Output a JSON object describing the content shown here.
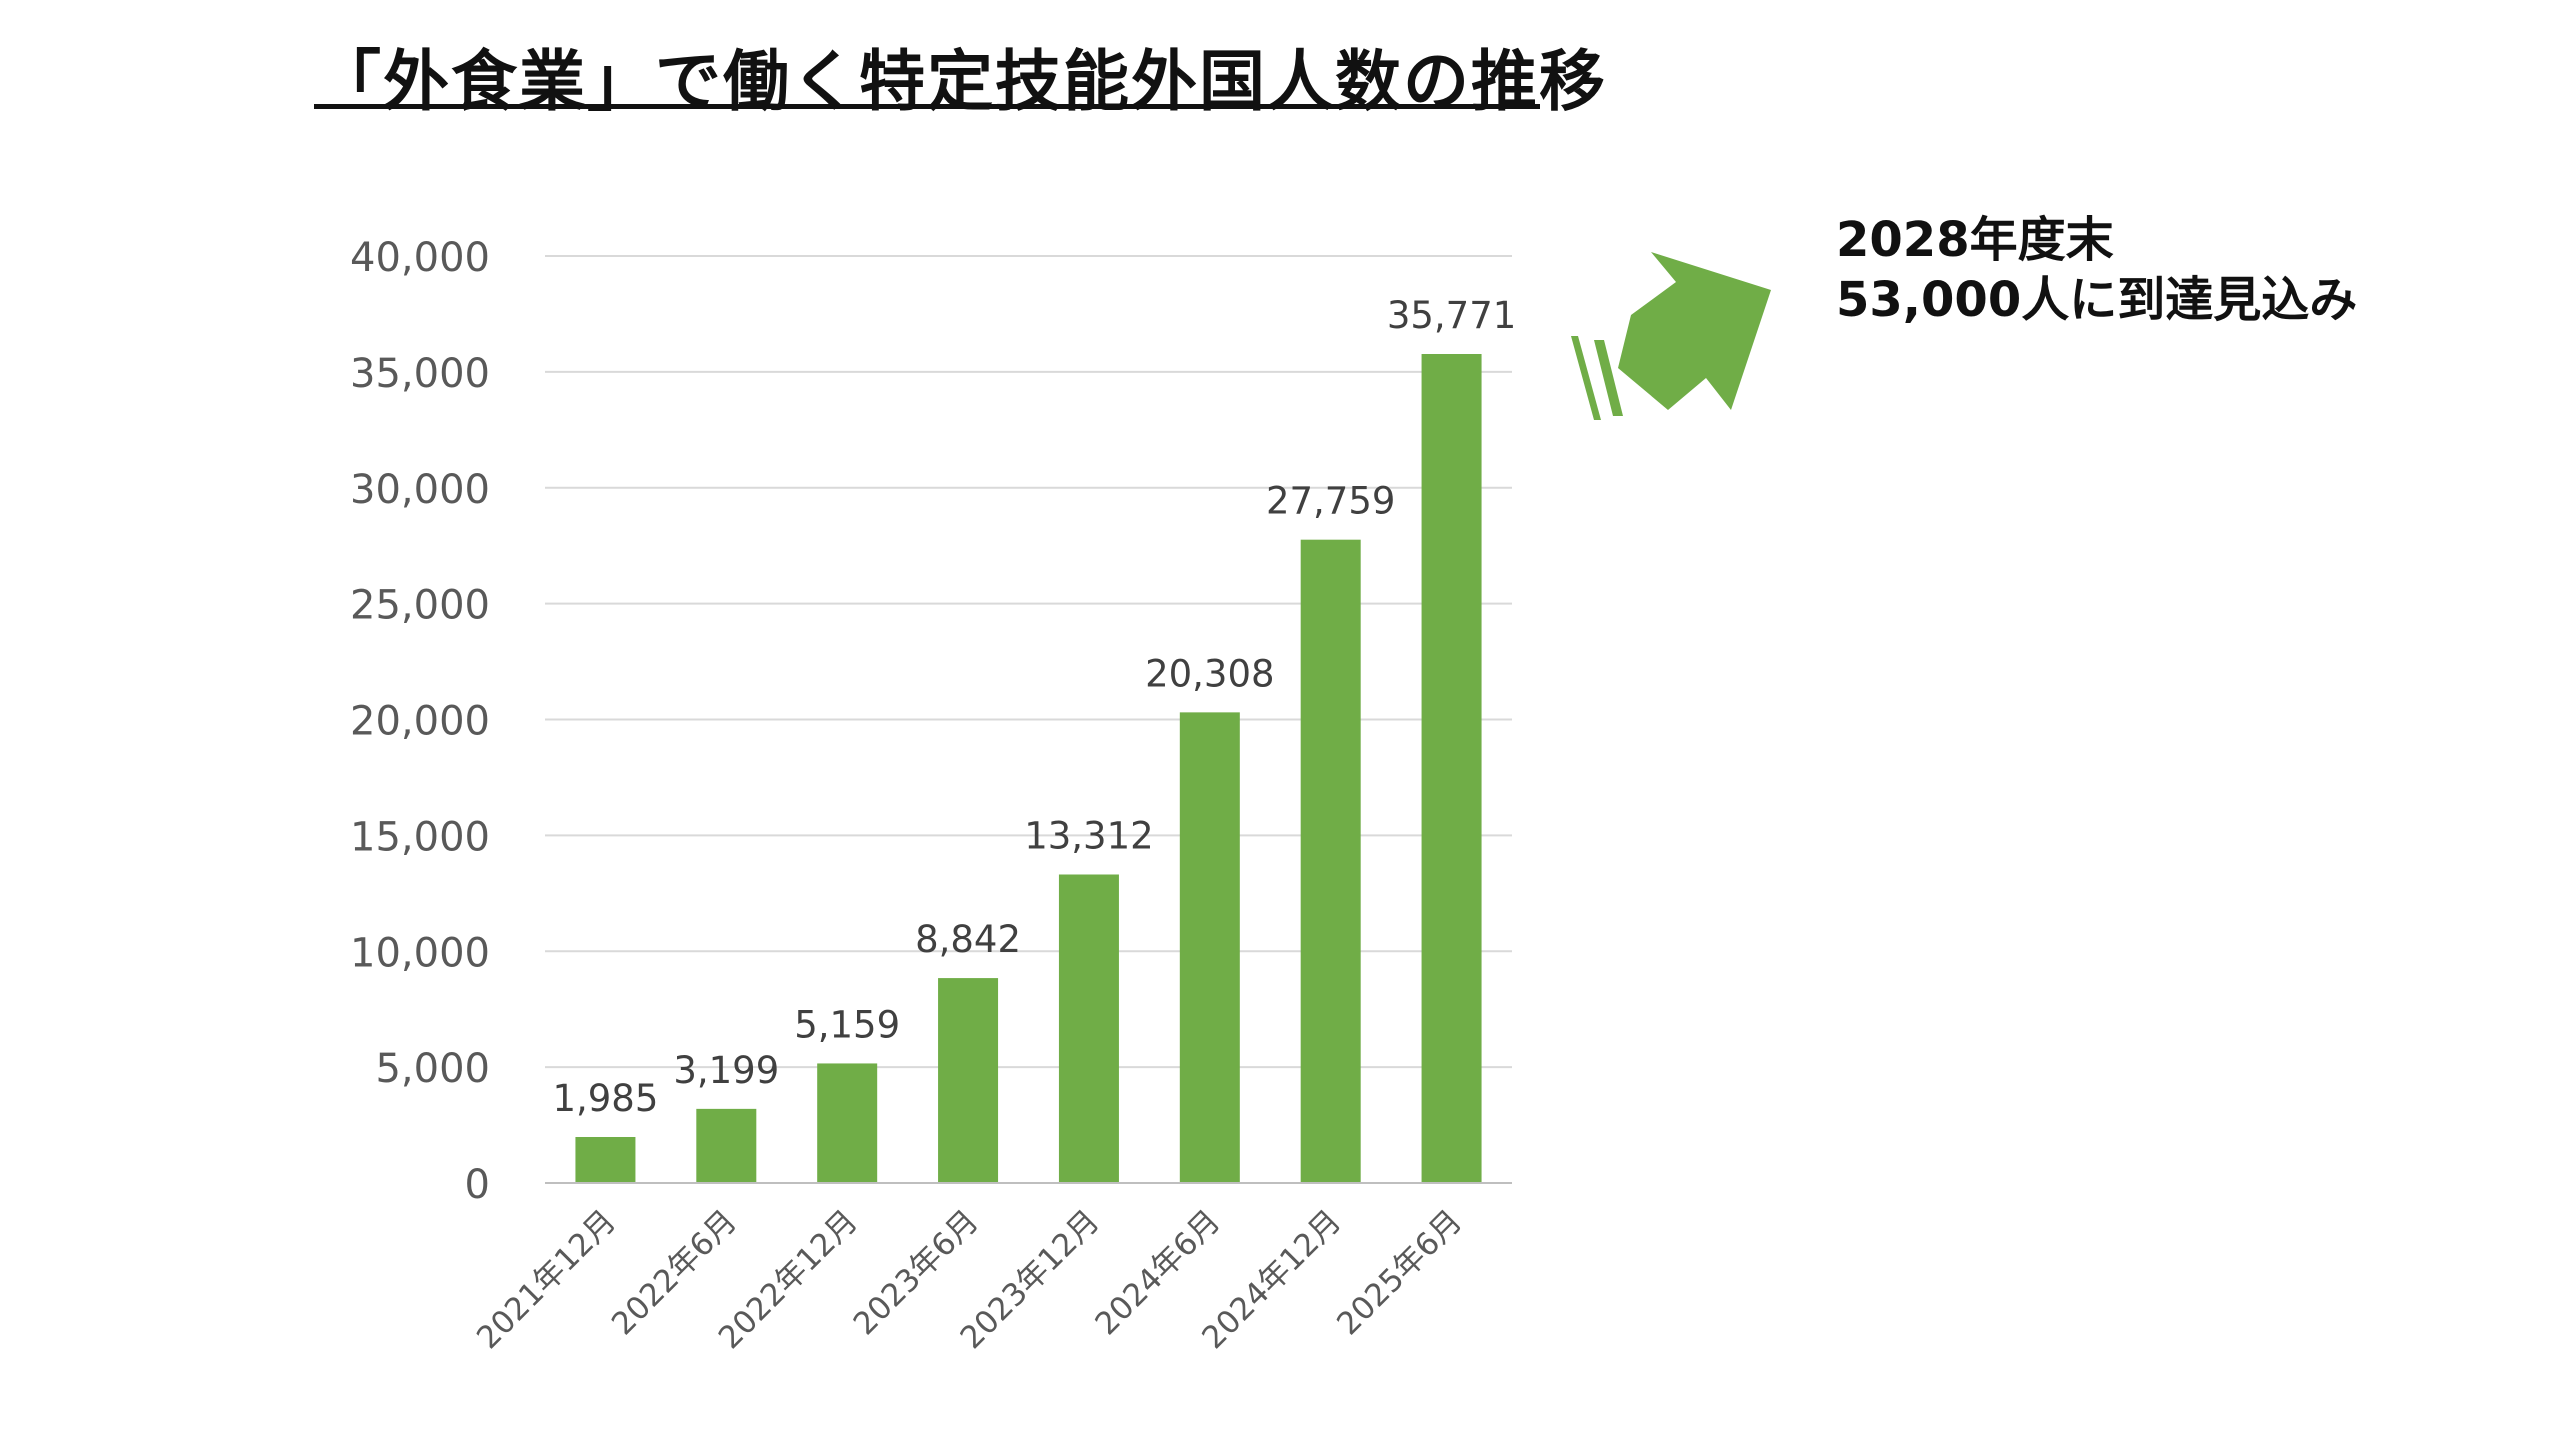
{
  "title": "「外食業」で働く特定技能外国人数の推移",
  "note": {
    "line1": "2028年度末",
    "line2": "53,000人に到達見込み"
  },
  "colors": {
    "bar": "#70AD47",
    "arrow": "#70AD47",
    "grid": "#D9D9D9",
    "axis_text": "#595959",
    "label_text": "#404040"
  },
  "icons": {
    "arrow": "up-right-arrow-icon"
  },
  "chart_data": {
    "type": "bar",
    "categories": [
      "2021年12月",
      "2022年6月",
      "2022年12月",
      "2023年6月",
      "2023年12月",
      "2024年6月",
      "2024年12月",
      "2025年6月"
    ],
    "values": [
      1985,
      3199,
      5159,
      8842,
      13312,
      20308,
      27759,
      35771
    ],
    "data_labels": [
      "1,985",
      "3,199",
      "5,159",
      "8,842",
      "13,312",
      "20,308",
      "27,759",
      "35,771"
    ],
    "yticks": [
      0,
      5000,
      10000,
      15000,
      20000,
      25000,
      30000,
      35000,
      40000
    ],
    "ytick_labels": [
      "0",
      "5,000",
      "10,000",
      "15,000",
      "20,000",
      "25,000",
      "30,000",
      "35,000",
      "40,000"
    ],
    "ylim": [
      0,
      40000
    ],
    "grid": true,
    "legend": "none",
    "xlabel": "",
    "ylabel": ""
  }
}
